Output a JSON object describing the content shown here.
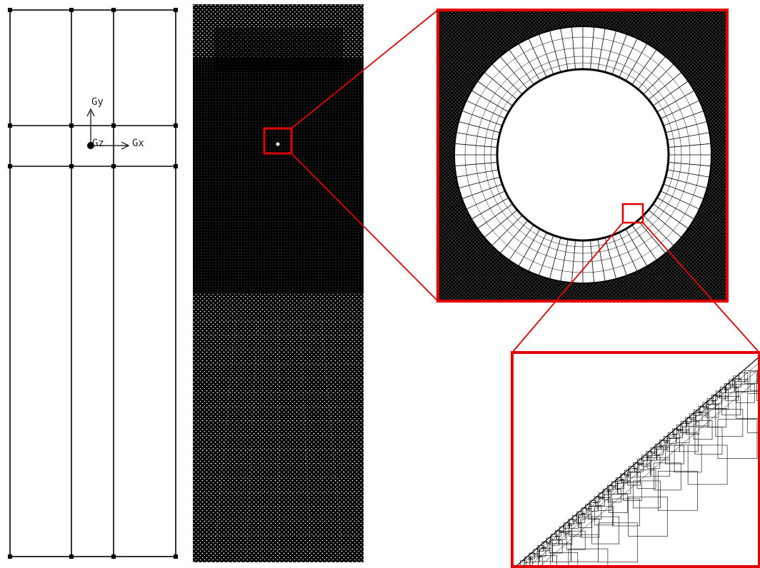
{
  "colors": {
    "background": "#ffffff",
    "line": "#000000",
    "mesh_dense": "#000000",
    "mesh_node": "#ffffff",
    "highlight": "#e00000"
  },
  "domain_panel": {
    "axis_labels": {
      "gy": "Gy",
      "gz": "Gz",
      "gx": "Gx"
    }
  },
  "mesh_panel": {
    "icon": "dense-triangular-mesh"
  },
  "cylinder_zoom": {
    "icon": "ring-boundary-layer-mesh"
  },
  "wall_zoom": {
    "icon": "near-wall-refined-mesh"
  }
}
